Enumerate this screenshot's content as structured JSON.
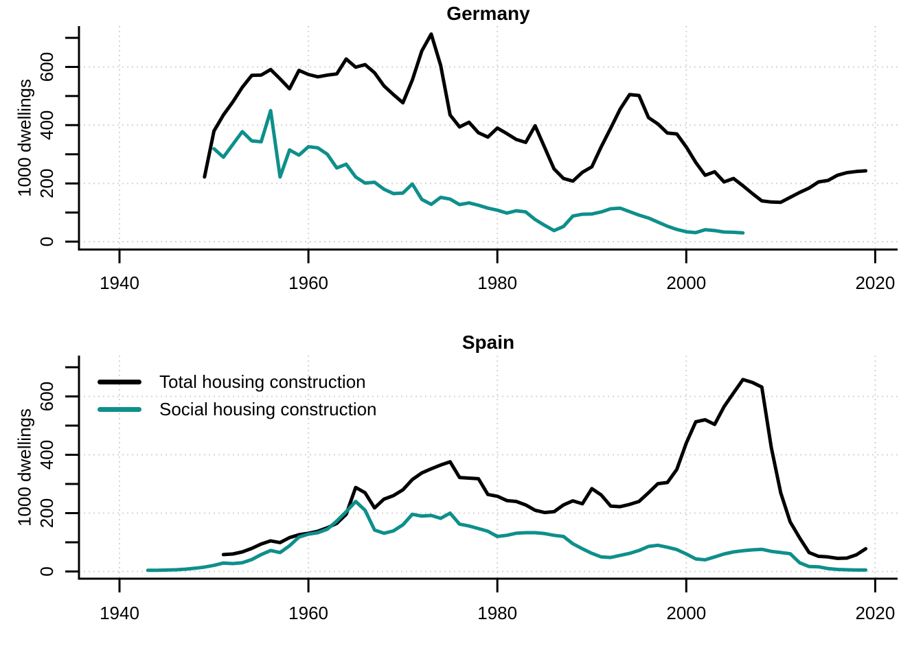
{
  "figure": {
    "background": "#ffffff",
    "grid_color": "#d4d4d4",
    "axis_color": "#000000"
  },
  "chart_data": [
    {
      "type": "line",
      "title": "Germany",
      "xlabel": "",
      "ylabel": "1000 dwellings",
      "xlim": [
        1936,
        2022
      ],
      "ylim": [
        0,
        740
      ],
      "xticks": [
        1940,
        1960,
        1980,
        2000,
        2020
      ],
      "yticks": [
        0,
        200,
        400,
        600
      ],
      "yticks_minor": [
        0,
        100,
        200,
        300,
        400,
        500,
        600,
        700
      ],
      "grid": "dotted",
      "legend_position": "none",
      "series": [
        {
          "name": "Total housing construction",
          "color": "#000000",
          "start_year": 1949,
          "values": [
            222,
            380,
            435,
            480,
            530,
            571,
            572,
            591,
            559,
            525,
            588,
            574,
            566,
            572,
            576,
            627,
            599,
            608,
            580,
            535,
            505,
            477,
            555,
            655,
            713,
            605,
            435,
            394,
            410,
            374,
            359,
            390,
            371,
            351,
            341,
            398,
            324,
            250,
            217,
            208,
            238,
            257,
            326,
            390,
            455,
            505,
            502,
            426,
            404,
            373,
            370,
            325,
            272,
            228,
            240,
            205,
            217,
            192,
            165,
            140,
            136,
            135,
            152,
            169,
            184,
            205,
            210,
            228,
            237,
            241,
            243
          ]
        },
        {
          "name": "Social housing construction",
          "color": "#0E8F8B",
          "start_year": 1950,
          "values": [
            319,
            290,
            334,
            378,
            346,
            343,
            450,
            222,
            315,
            297,
            326,
            322,
            300,
            253,
            266,
            222,
            201,
            204,
            180,
            165,
            167,
            198,
            145,
            128,
            152,
            146,
            127,
            133,
            125,
            115,
            108,
            98,
            106,
            102,
            76,
            56,
            38,
            52,
            88,
            94,
            95,
            102,
            113,
            115,
            103,
            91,
            81,
            67,
            53,
            42,
            34,
            31,
            41,
            38,
            33,
            32,
            30
          ]
        }
      ]
    },
    {
      "type": "line",
      "title": "Spain",
      "xlabel": "",
      "ylabel": "1000 dwellings",
      "xlim": [
        1936,
        2022
      ],
      "ylim": [
        0,
        740
      ],
      "xticks": [
        1940,
        1960,
        1980,
        2000,
        2020
      ],
      "yticks": [
        0,
        200,
        400,
        600
      ],
      "yticks_minor": [
        0,
        100,
        200,
        300,
        400,
        500,
        600,
        700
      ],
      "grid": "dotted",
      "legend": {
        "position": "top-left",
        "entries": [
          "Total housing construction",
          "Social housing construction"
        ]
      },
      "series": [
        {
          "name": "Total housing construction",
          "color": "#000000",
          "start_year": 1951,
          "values": [
            58,
            60,
            67,
            79,
            94,
            105,
            99,
            116,
            126,
            131,
            138,
            150,
            165,
            196,
            288,
            270,
            218,
            248,
            260,
            280,
            315,
            338,
            352,
            365,
            376,
            322,
            320,
            318,
            264,
            258,
            243,
            240,
            228,
            210,
            202,
            205,
            228,
            242,
            232,
            284,
            262,
            224,
            222,
            230,
            240,
            270,
            301,
            305,
            350,
            440,
            513,
            520,
            504,
            565,
            612,
            658,
            648,
            632,
            425,
            270,
            170,
            115,
            65,
            52,
            50,
            45,
            46,
            57,
            78
          ]
        },
        {
          "name": "Social housing construction",
          "color": "#0E8F8B",
          "start_year": 1943,
          "values": [
            4,
            4,
            5,
            6,
            8,
            11,
            15,
            21,
            29,
            27,
            30,
            41,
            58,
            72,
            65,
            88,
            118,
            128,
            133,
            145,
            173,
            205,
            240,
            210,
            142,
            131,
            139,
            160,
            196,
            190,
            192,
            182,
            200,
            162,
            156,
            147,
            138,
            120,
            124,
            131,
            133,
            133,
            130,
            124,
            120,
            95,
            78,
            62,
            50,
            48,
            55,
            62,
            72,
            86,
            90,
            83,
            75,
            60,
            43,
            40,
            50,
            60,
            67,
            71,
            74,
            76,
            69,
            65,
            61,
            30,
            17,
            16,
            10,
            7,
            6,
            5,
            5
          ]
        }
      ]
    }
  ]
}
